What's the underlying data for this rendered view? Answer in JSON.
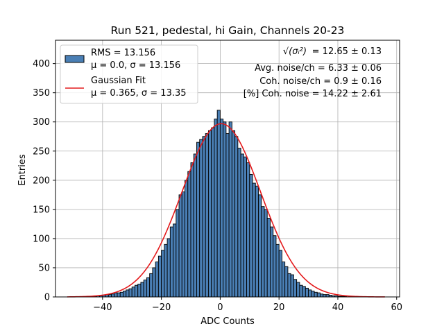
{
  "chart_data": {
    "type": "bar",
    "subtype": "histogram",
    "title": "Run 521, pedestal, hi Gain, Channels 20-23",
    "xlabel": "ADC Counts",
    "ylabel": "Entries",
    "xlim": [
      -56,
      61
    ],
    "ylim": [
      0,
      440
    ],
    "grid": true,
    "xticks": [
      -40,
      -20,
      0,
      20,
      40,
      60
    ],
    "yticks": [
      0,
      50,
      100,
      150,
      200,
      250,
      300,
      350,
      400
    ],
    "bin_width": 1,
    "bins_x": [
      -52,
      -51,
      -50,
      -49,
      -48,
      -47,
      -46,
      -45,
      -44,
      -43,
      -42,
      -41,
      -40,
      -39,
      -38,
      -37,
      -36,
      -35,
      -34,
      -33,
      -32,
      -31,
      -30,
      -29,
      -28,
      -27,
      -26,
      -25,
      -24,
      -23,
      -22,
      -21,
      -20,
      -19,
      -18,
      -17,
      -16,
      -15,
      -14,
      -13,
      -12,
      -11,
      -10,
      -9,
      -8,
      -7,
      -6,
      -5,
      -4,
      -3,
      -2,
      -1,
      0,
      1,
      2,
      3,
      4,
      5,
      6,
      7,
      8,
      9,
      10,
      11,
      12,
      13,
      14,
      15,
      16,
      17,
      18,
      19,
      20,
      21,
      22,
      23,
      24,
      25,
      26,
      27,
      28,
      29,
      30,
      31,
      32,
      33,
      34,
      35,
      36,
      37,
      38,
      39,
      40,
      41,
      42,
      43,
      44,
      45,
      46,
      47,
      48,
      49,
      50,
      51,
      52,
      53,
      54,
      55
    ],
    "values": [
      0,
      0,
      0,
      0,
      0,
      0,
      0,
      1,
      1,
      1,
      2,
      2,
      3,
      4,
      4,
      5,
      7,
      7,
      8,
      10,
      12,
      14,
      17,
      20,
      22,
      25,
      29,
      33,
      40,
      50,
      60,
      70,
      80,
      90,
      100,
      120,
      125,
      150,
      175,
      180,
      200,
      215,
      230,
      245,
      265,
      270,
      275,
      280,
      285,
      290,
      305,
      320,
      305,
      300,
      280,
      300,
      285,
      275,
      255,
      245,
      240,
      230,
      210,
      195,
      190,
      175,
      155,
      150,
      135,
      120,
      105,
      90,
      80,
      60,
      52,
      40,
      38,
      30,
      25,
      20,
      18,
      15,
      12,
      10,
      8,
      7,
      5,
      4,
      4,
      3,
      2,
      2,
      1,
      1,
      1,
      0,
      0,
      0,
      0,
      0,
      0,
      0,
      0,
      0,
      0,
      0,
      0,
      0
    ],
    "series": [
      {
        "name": "RMS = 13.156",
        "name_line2": "μ = 0.0, σ = 13.156",
        "type": "histogram",
        "color": "#4a7fb5"
      },
      {
        "name": "Gaussian Fit",
        "name_line2": "μ = 0.365, σ = 13.35",
        "type": "line",
        "color": "#e41a1c",
        "mu": 0.365,
        "sigma": 13.35,
        "amplitude": 297,
        "x_range": [
          -52,
          56
        ]
      }
    ],
    "legend_position": "top-left",
    "annotations": [
      {
        "id": "sigma-sq",
        "label_prefix": "√(σᵢ²)",
        "text": " = 12.65 ± 0.13"
      },
      {
        "id": "avg-noise",
        "text": "Avg. noise/ch = 6.33 ± 0.06"
      },
      {
        "id": "coh-noise",
        "text": "Coh. noise/ch = 0.9 ± 0.16"
      },
      {
        "id": "coh-pct",
        "text": "[%] Coh. noise = 14.22 ± 2.61"
      }
    ]
  }
}
